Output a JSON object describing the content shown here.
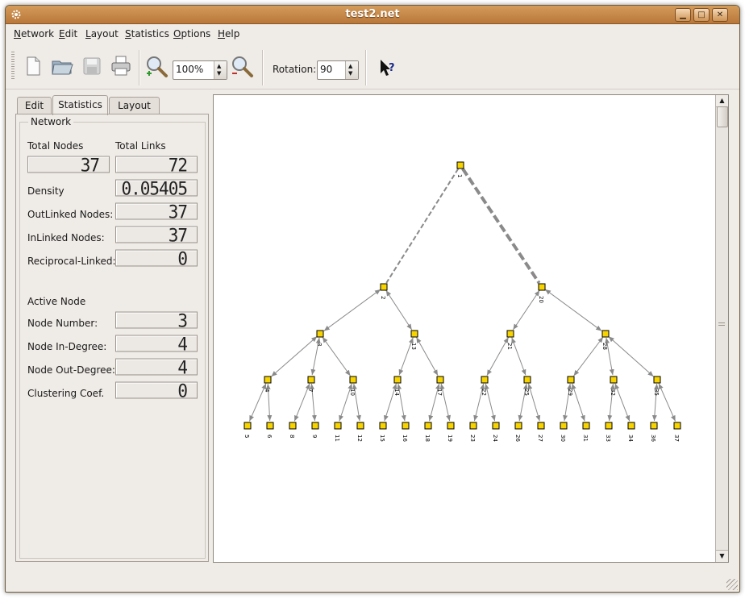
{
  "window": {
    "title": "test2.net"
  },
  "menu": {
    "items": [
      {
        "label": "Network",
        "accel": "N",
        "rest": "etwork"
      },
      {
        "label": "Edit",
        "accel": "E",
        "rest": "dit"
      },
      {
        "label": "Layout",
        "accel": "L",
        "rest": "ayout"
      },
      {
        "label": "Statistics",
        "accel": "S",
        "rest": "tatistics"
      },
      {
        "label": "Options",
        "accel": "O",
        "rest": "ptions"
      },
      {
        "label": "Help",
        "accel": "H",
        "rest": "elp"
      }
    ]
  },
  "toolbar": {
    "zoom_value": "100%",
    "rotation_label": "Rotation:",
    "rotation_value": "90"
  },
  "tabs": [
    "Edit",
    "Statistics",
    "Layout"
  ],
  "active_tab": "Statistics",
  "stats": {
    "section_network": "Network",
    "total_nodes_label": "Total Nodes",
    "total_links_label": "Total Links",
    "total_nodes": "37",
    "total_links": "72",
    "density_label": "Density",
    "density": "0.05405",
    "outlinked_label": "OutLinked Nodes:",
    "outlinked": "37",
    "inlinked_label": "InLinked Nodes:",
    "inlinked": "37",
    "reciprocal_label": "Reciprocal-Linked:",
    "reciprocal": "0",
    "section_active": "Active Node",
    "node_number_label": "Node Number:",
    "node_number": "3",
    "in_degree_label": "Node In-Degree:",
    "in_degree": "4",
    "out_degree_label": "Node Out-Degree:",
    "out_degree": "4",
    "clustering_label": "Clustering Coef.",
    "clustering": "0"
  },
  "graph": {
    "node_color": "#f7d400",
    "edge_color": "#8a8a8a",
    "label_color": "#000000",
    "node_ids": [
      "1",
      "2",
      "3",
      "4",
      "5",
      "6",
      "7",
      "8",
      "9",
      "10",
      "11",
      "12",
      "13",
      "14",
      "15",
      "16",
      "17",
      "18",
      "19",
      "20",
      "21",
      "22",
      "23",
      "24",
      "25",
      "26",
      "27",
      "28",
      "29",
      "30",
      "31",
      "32",
      "33",
      "34",
      "35",
      "36",
      "37"
    ]
  }
}
